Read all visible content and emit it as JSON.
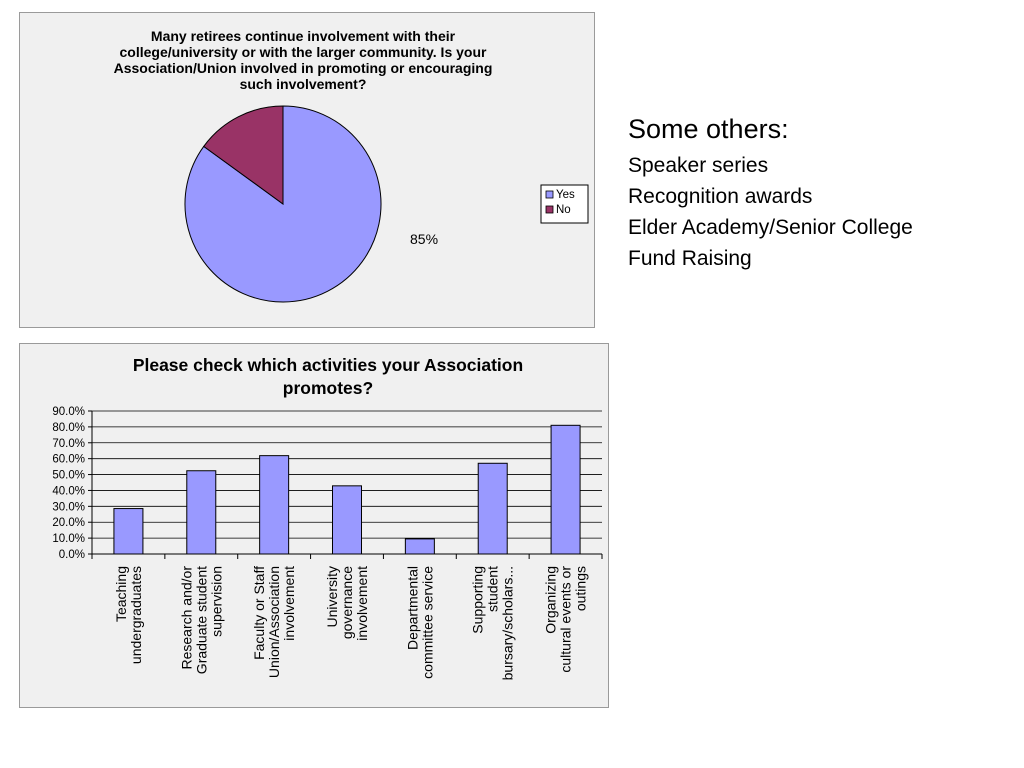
{
  "others": {
    "heading": "Some others:",
    "items": [
      "Speaker series",
      "Recognition awards",
      "Elder Academy/Senior College",
      "Fund Raising"
    ]
  },
  "chart_data": [
    {
      "type": "pie",
      "title_lines": [
        "Many retirees continue involvement with their",
        "college/university or with the larger community. Is your",
        "Association/Union involved in promoting or encouraging",
        "such involvement?"
      ],
      "slices": [
        {
          "label": "Yes",
          "value": 85,
          "color": "#9999ff"
        },
        {
          "label": "No",
          "value": 15,
          "color": "#993366"
        }
      ],
      "data_label": "85%",
      "legend": [
        "Yes",
        "No"
      ],
      "legend_position": "right"
    },
    {
      "type": "bar",
      "title_lines": [
        "Please check which activities your Association",
        "promotes?"
      ],
      "categories": [
        [
          "Teaching",
          "undergraduates"
        ],
        [
          "Research and/or",
          "Graduate student",
          "supervision"
        ],
        [
          "Faculty or Staff",
          "Union/Association",
          "involvement"
        ],
        [
          "University",
          "governance",
          "involvement"
        ],
        [
          "Departmental",
          "committee service"
        ],
        [
          "Supporting",
          "student",
          "bursary/scholars..."
        ],
        [
          "Organizing",
          "cultural events or",
          "outings"
        ]
      ],
      "values": [
        28.6,
        52.4,
        61.9,
        42.9,
        9.5,
        57.1,
        81.0
      ],
      "ylim": [
        0,
        90
      ],
      "yticks": [
        "0.0%",
        "10.0%",
        "20.0%",
        "30.0%",
        "40.0%",
        "50.0%",
        "60.0%",
        "70.0%",
        "80.0%",
        "90.0%"
      ],
      "bar_color": "#9999ff",
      "grid": true
    }
  ]
}
